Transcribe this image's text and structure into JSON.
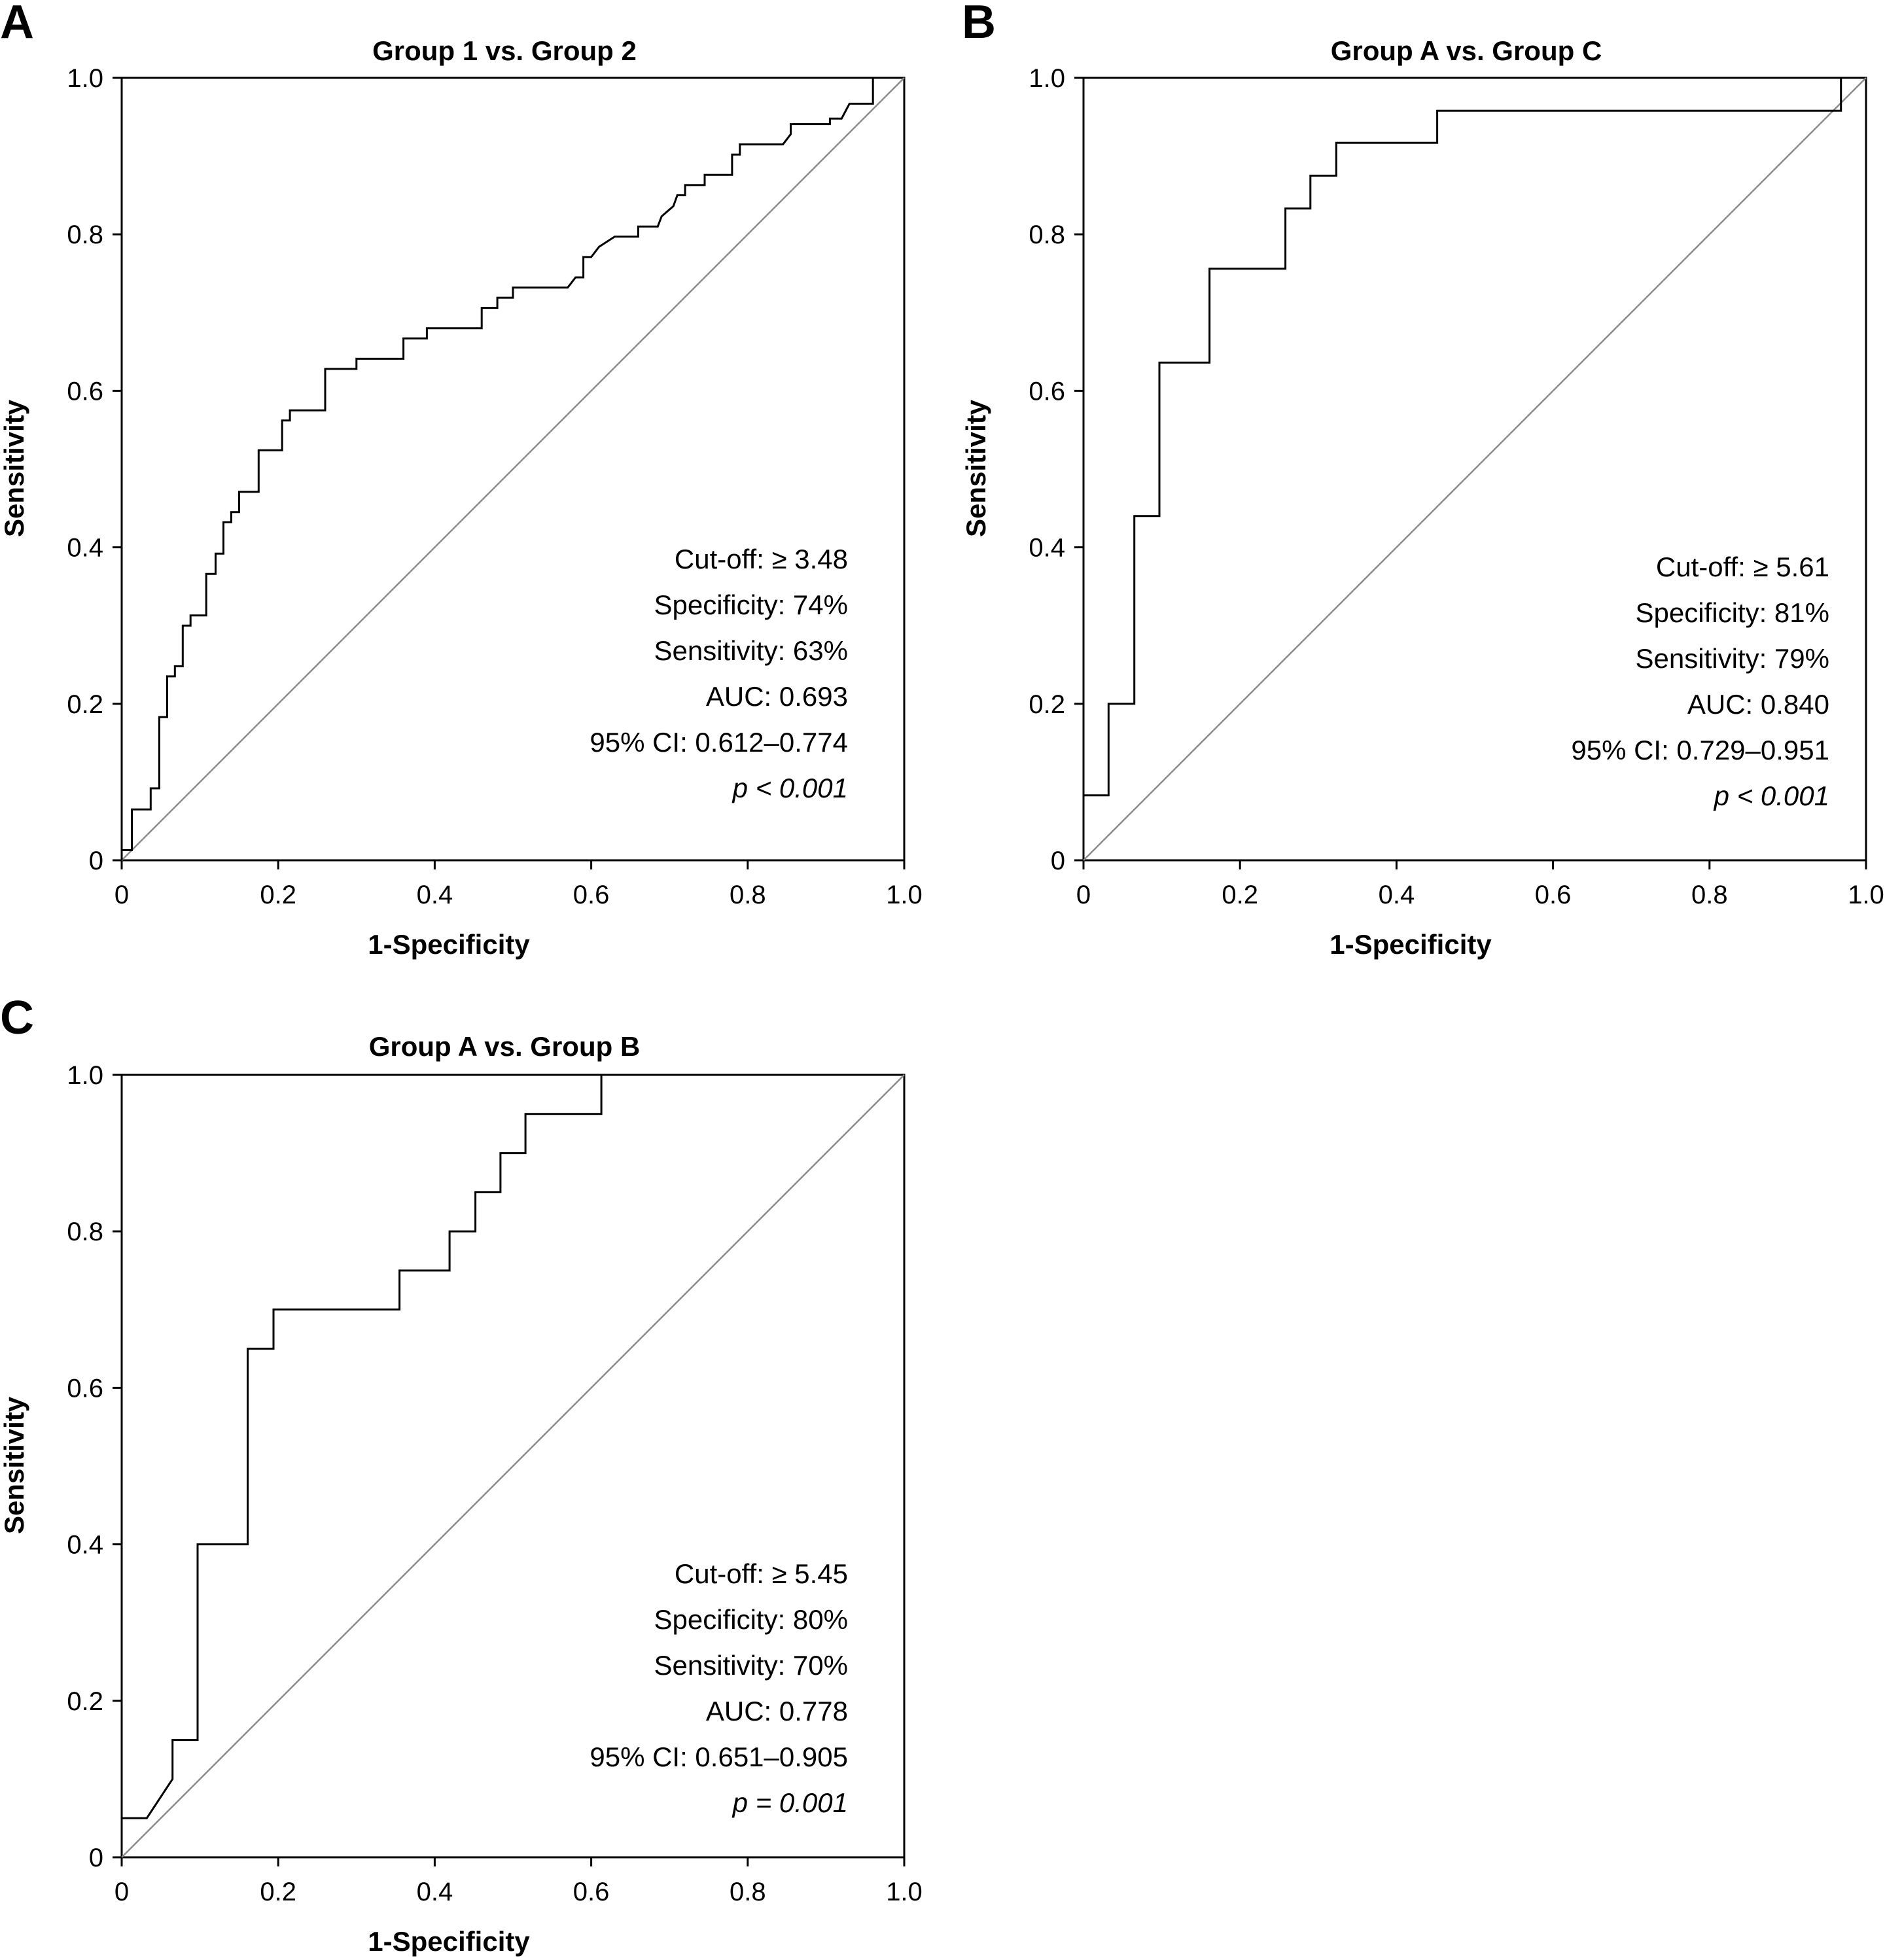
{
  "chart_data": [
    {
      "type": "line",
      "panel": "A",
      "title": "Group 1 vs. Group 2",
      "xlabel": "1-Specificity",
      "ylabel": "Sensitivity",
      "xlim": [
        0,
        1
      ],
      "ylim": [
        0,
        1
      ],
      "xticks": [
        "0",
        "0.2",
        "0.4",
        "0.6",
        "0.8",
        "1.0"
      ],
      "yticks": [
        "0",
        "0.2",
        "0.4",
        "0.6",
        "0.8",
        "1.0"
      ],
      "reference_line": true,
      "annotations": [
        "Cut-off: ≥ 3.48",
        "Specificity: 74%",
        "Sensitivity: 63%",
        "AUC: 0.693",
        "95% CI: 0.612–0.774",
        "p < 0.001"
      ],
      "curve": [
        [
          0,
          0
        ],
        [
          0,
          0.013
        ],
        [
          0.013,
          0.013
        ],
        [
          0.013,
          0.065
        ],
        [
          0.037,
          0.065
        ],
        [
          0.037,
          0.092
        ],
        [
          0.048,
          0.092
        ],
        [
          0.048,
          0.183
        ],
        [
          0.058,
          0.183
        ],
        [
          0.058,
          0.235
        ],
        [
          0.068,
          0.235
        ],
        [
          0.068,
          0.248
        ],
        [
          0.078,
          0.248
        ],
        [
          0.078,
          0.3
        ],
        [
          0.088,
          0.3
        ],
        [
          0.088,
          0.313
        ],
        [
          0.108,
          0.313
        ],
        [
          0.108,
          0.366
        ],
        [
          0.12,
          0.366
        ],
        [
          0.12,
          0.392
        ],
        [
          0.13,
          0.392
        ],
        [
          0.13,
          0.432
        ],
        [
          0.14,
          0.432
        ],
        [
          0.14,
          0.445
        ],
        [
          0.15,
          0.445
        ],
        [
          0.15,
          0.471
        ],
        [
          0.175,
          0.471
        ],
        [
          0.175,
          0.524
        ],
        [
          0.205,
          0.524
        ],
        [
          0.205,
          0.562
        ],
        [
          0.215,
          0.562
        ],
        [
          0.215,
          0.575
        ],
        [
          0.26,
          0.575
        ],
        [
          0.26,
          0.628
        ],
        [
          0.3,
          0.628
        ],
        [
          0.3,
          0.641
        ],
        [
          0.36,
          0.641
        ],
        [
          0.36,
          0.667
        ],
        [
          0.39,
          0.667
        ],
        [
          0.39,
          0.68
        ],
        [
          0.46,
          0.68
        ],
        [
          0.46,
          0.706
        ],
        [
          0.48,
          0.706
        ],
        [
          0.48,
          0.719
        ],
        [
          0.5,
          0.719
        ],
        [
          0.5,
          0.732
        ],
        [
          0.57,
          0.732
        ],
        [
          0.58,
          0.745
        ],
        [
          0.59,
          0.745
        ],
        [
          0.59,
          0.771
        ],
        [
          0.6,
          0.771
        ],
        [
          0.61,
          0.784
        ],
        [
          0.63,
          0.797
        ],
        [
          0.66,
          0.797
        ],
        [
          0.66,
          0.81
        ],
        [
          0.685,
          0.81
        ],
        [
          0.69,
          0.823
        ],
        [
          0.705,
          0.836
        ],
        [
          0.71,
          0.85
        ],
        [
          0.72,
          0.85
        ],
        [
          0.72,
          0.863
        ],
        [
          0.745,
          0.863
        ],
        [
          0.745,
          0.876
        ],
        [
          0.78,
          0.876
        ],
        [
          0.78,
          0.902
        ],
        [
          0.79,
          0.902
        ],
        [
          0.79,
          0.915
        ],
        [
          0.845,
          0.915
        ],
        [
          0.855,
          0.928
        ],
        [
          0.855,
          0.941
        ],
        [
          0.905,
          0.941
        ],
        [
          0.905,
          0.948
        ],
        [
          0.92,
          0.948
        ],
        [
          0.93,
          0.967
        ],
        [
          0.96,
          0.967
        ],
        [
          0.96,
          1.0
        ]
      ]
    },
    {
      "type": "line",
      "panel": "B",
      "title": "Group A vs. Group C",
      "xlabel": "1-Specificity",
      "ylabel": "Sensitivity",
      "xlim": [
        0,
        1
      ],
      "ylim": [
        0,
        1
      ],
      "xticks": [
        "0",
        "0.2",
        "0.4",
        "0.6",
        "0.8",
        "1.0"
      ],
      "yticks": [
        "0",
        "0.2",
        "0.4",
        "0.6",
        "0.8",
        "1.0"
      ],
      "reference_line": true,
      "annotations": [
        "Cut-off: ≥ 5.61",
        "Specificity: 81%",
        "Sensitivity: 79%",
        "AUC: 0.840",
        "95% CI: 0.729–0.951",
        "p < 0.001"
      ],
      "curve": [
        [
          0,
          0.083
        ],
        [
          0.032,
          0.083
        ],
        [
          0.032,
          0.2
        ],
        [
          0.065,
          0.2
        ],
        [
          0.065,
          0.44
        ],
        [
          0.097,
          0.44
        ],
        [
          0.097,
          0.636
        ],
        [
          0.161,
          0.636
        ],
        [
          0.161,
          0.756
        ],
        [
          0.258,
          0.756
        ],
        [
          0.258,
          0.833
        ],
        [
          0.29,
          0.833
        ],
        [
          0.29,
          0.875
        ],
        [
          0.323,
          0.875
        ],
        [
          0.323,
          0.917
        ],
        [
          0.452,
          0.917
        ],
        [
          0.452,
          0.958
        ],
        [
          0.968,
          0.958
        ],
        [
          0.968,
          1.0
        ]
      ]
    },
    {
      "type": "line",
      "panel": "C",
      "title": "Group A vs. Group B",
      "xlabel": "1-Specificity",
      "ylabel": "Sensitivity",
      "xlim": [
        0,
        1
      ],
      "ylim": [
        0,
        1
      ],
      "xticks": [
        "0",
        "0.2",
        "0.4",
        "0.6",
        "0.8",
        "1.0"
      ],
      "yticks": [
        "0",
        "0.2",
        "0.4",
        "0.6",
        "0.8",
        "1.0"
      ],
      "reference_line": true,
      "annotations": [
        "Cut-off: ≥ 5.45",
        "Specificity: 80%",
        "Sensitivity: 70%",
        "AUC: 0.778",
        "95% CI: 0.651–0.905",
        "p = 0.001"
      ],
      "curve": [
        [
          0,
          0.05
        ],
        [
          0.032,
          0.05
        ],
        [
          0.065,
          0.1
        ],
        [
          0.065,
          0.15
        ],
        [
          0.097,
          0.15
        ],
        [
          0.097,
          0.4
        ],
        [
          0.161,
          0.4
        ],
        [
          0.161,
          0.65
        ],
        [
          0.194,
          0.65
        ],
        [
          0.194,
          0.7
        ],
        [
          0.355,
          0.7
        ],
        [
          0.355,
          0.75
        ],
        [
          0.419,
          0.75
        ],
        [
          0.419,
          0.8
        ],
        [
          0.452,
          0.8
        ],
        [
          0.452,
          0.85
        ],
        [
          0.484,
          0.85
        ],
        [
          0.484,
          0.9
        ],
        [
          0.516,
          0.9
        ],
        [
          0.516,
          0.95
        ],
        [
          0.613,
          0.95
        ],
        [
          0.613,
          1.0
        ]
      ]
    }
  ]
}
